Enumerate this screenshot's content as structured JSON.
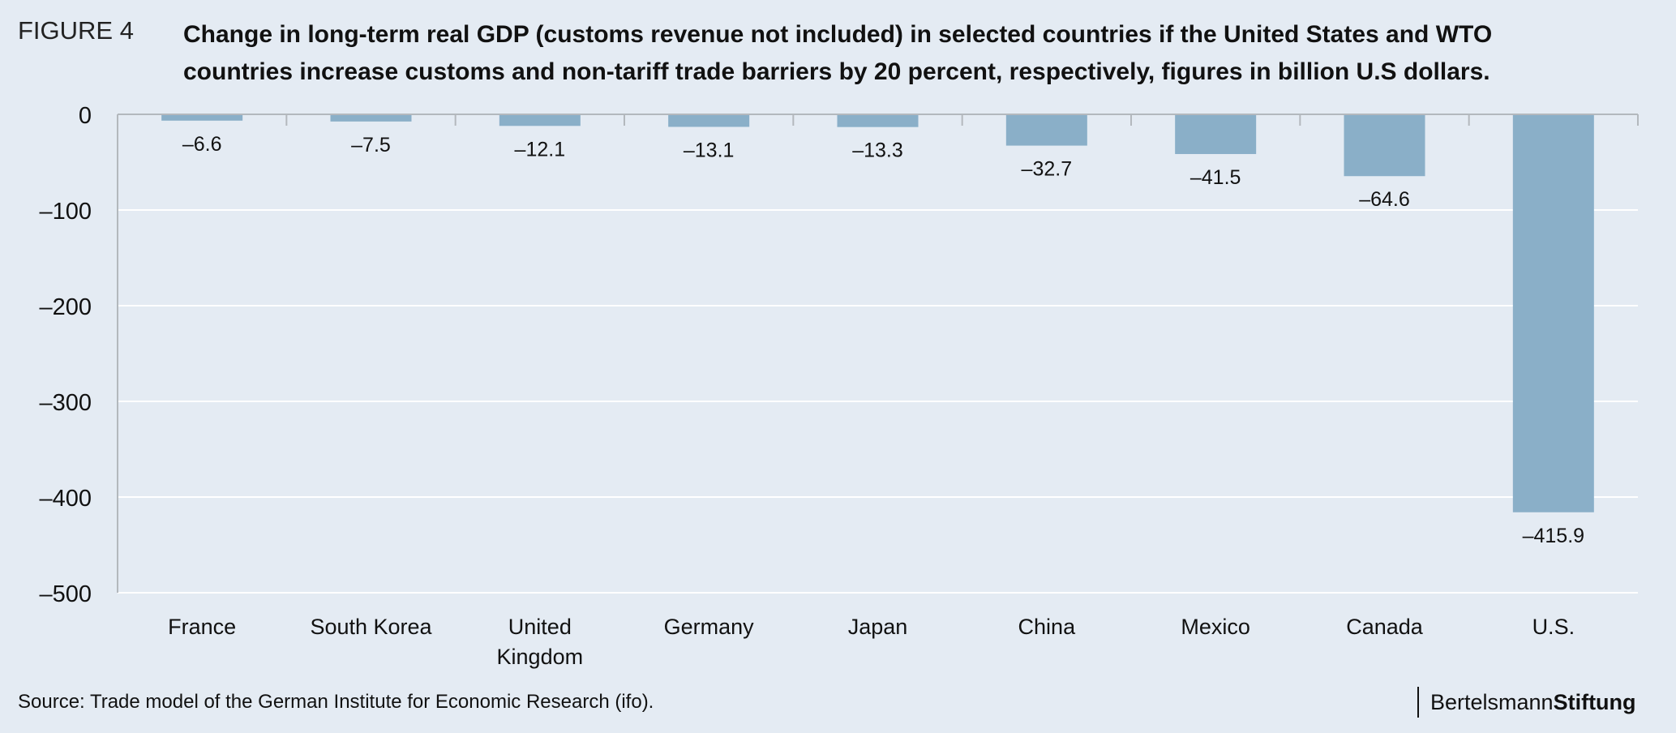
{
  "figure_label": "FIGURE 4",
  "title_line1": "Change in long-term real GDP (customs revenue not included) in selected countries if the United States and WTO",
  "title_line2": "countries increase customs and non-tariff trade barriers by 20 percent, respectively, figures in billion U.S dollars.",
  "source": "Source: Trade model of the German Institute for Economic Research (ifo).",
  "logo": {
    "part1": "Bertelsmann",
    "part2": "Stiftung"
  },
  "colors": {
    "bar": "#8aafc8",
    "background": "#e4ebf3",
    "gridline": "#ffffff",
    "axis": "#b3b8bd"
  },
  "chart_data": {
    "type": "bar",
    "title": "Change in long-term real GDP (customs revenue not included) in selected countries if the United States and WTO countries increase customs and non-tariff trade barriers by 20 percent, respectively, figures in billion U.S dollars.",
    "categories": [
      [
        "France"
      ],
      [
        "South Korea"
      ],
      [
        "United",
        "Kingdom"
      ],
      [
        "Germany"
      ],
      [
        "Japan"
      ],
      [
        "China"
      ],
      [
        "Mexico"
      ],
      [
        "Canada"
      ],
      [
        "U.S."
      ]
    ],
    "values": [
      -6.6,
      -7.5,
      -12.1,
      -13.1,
      -13.3,
      -32.7,
      -41.5,
      -64.6,
      -415.9
    ],
    "data_labels": [
      "–6.6",
      "–7.5",
      "–12.1",
      "–13.1",
      "–13.3",
      "–32.7",
      "–41.5",
      "–64.6",
      "–415.9"
    ],
    "xlabel": "",
    "ylabel": "",
    "ylim": [
      -500,
      0
    ],
    "yticks": [
      0,
      -100,
      -200,
      -300,
      -400,
      -500
    ],
    "ytick_labels": [
      "0",
      "–100",
      "–200",
      "–300",
      "–400",
      "–500"
    ],
    "grid": true,
    "legend": "none"
  }
}
